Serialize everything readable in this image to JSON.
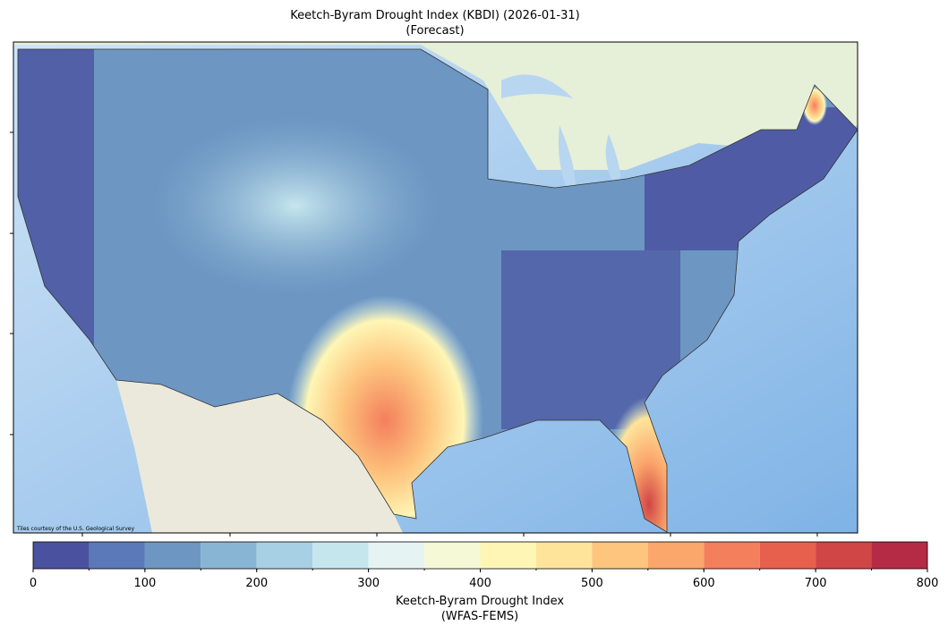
{
  "title": [
    "Keetch-Byram Drought Index (KBDI) (2026-01-31)",
    "(Forecast)"
  ],
  "map": {
    "attribution": "Tiles courtesy of the U.S. Geological Survey"
  },
  "colorbar": {
    "label": [
      "Keetch-Byram Drought Index",
      "(WFAS-FEMS)"
    ],
    "range": [
      0,
      800
    ],
    "bounds": [
      0,
      50,
      100,
      150,
      200,
      250,
      300,
      350,
      400,
      450,
      500,
      550,
      600,
      650,
      700,
      750,
      800
    ],
    "colors": [
      "#4a52a0",
      "#5b78b8",
      "#6d96c2",
      "#89b5d5",
      "#a8d0e4",
      "#c6e6ee",
      "#e5f3f3",
      "#f5f9d5",
      "#fef6b5",
      "#fee49b",
      "#fdc57e",
      "#fba66b",
      "#f47f5c",
      "#e6604d",
      "#d04545",
      "#b52b45"
    ],
    "ticks": [
      0,
      100,
      200,
      300,
      400,
      500,
      600,
      700,
      800
    ]
  }
}
